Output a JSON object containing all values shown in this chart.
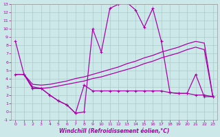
{
  "xlabel": "Windchill (Refroidissement éolien,°C)",
  "bg_color": "#cce8e8",
  "grid_color": "#aacccc",
  "line_color": "#aa00aa",
  "main_x": [
    0,
    1,
    2,
    3,
    4,
    5,
    6,
    7,
    8,
    9,
    10,
    11,
    12,
    13,
    14,
    15,
    16,
    17,
    18,
    19,
    20,
    21,
    22,
    23
  ],
  "main_y": [
    8.5,
    4.5,
    2.8,
    2.8,
    2.0,
    1.3,
    0.8,
    -0.2,
    -0.05,
    10.0,
    7.2,
    12.5,
    13.0,
    13.2,
    12.3,
    10.2,
    12.5,
    8.5,
    2.3,
    2.2,
    2.2,
    4.5,
    1.8,
    1.8
  ],
  "diag_upper_x": [
    0,
    1,
    2,
    3,
    4,
    5,
    6,
    7,
    8,
    9,
    10,
    11,
    12,
    13,
    14,
    15,
    16,
    17,
    18,
    19,
    20,
    21,
    22,
    23
  ],
  "diag_upper_y": [
    4.5,
    4.5,
    3.3,
    3.2,
    3.3,
    3.5,
    3.7,
    4.0,
    4.2,
    4.5,
    4.8,
    5.1,
    5.4,
    5.8,
    6.1,
    6.5,
    6.8,
    7.2,
    7.5,
    7.8,
    8.2,
    8.5,
    8.3,
    1.8
  ],
  "diag_lower_x": [
    0,
    1,
    2,
    3,
    4,
    5,
    6,
    7,
    8,
    9,
    10,
    11,
    12,
    13,
    14,
    15,
    16,
    17,
    18,
    19,
    20,
    21,
    22,
    23
  ],
  "diag_lower_y": [
    4.5,
    4.5,
    3.0,
    2.8,
    2.9,
    3.1,
    3.3,
    3.5,
    3.7,
    4.0,
    4.2,
    4.5,
    4.8,
    5.1,
    5.4,
    5.8,
    6.1,
    6.5,
    6.8,
    7.1,
    7.5,
    7.8,
    7.5,
    1.8
  ],
  "flat_x": [
    0,
    1,
    2,
    3,
    4,
    5,
    6,
    7,
    8,
    9,
    10,
    11,
    12,
    13,
    14,
    15,
    16,
    17,
    18,
    19,
    20,
    21,
    22,
    23
  ],
  "flat_y": [
    4.5,
    4.5,
    2.8,
    2.8,
    2.0,
    1.3,
    0.8,
    -0.2,
    3.2,
    2.5,
    2.5,
    2.5,
    2.5,
    2.5,
    2.5,
    2.5,
    2.5,
    2.5,
    2.3,
    2.2,
    2.2,
    2.0,
    2.0,
    1.8
  ],
  "ylim": [
    -1,
    13
  ],
  "xlim": [
    -0.5,
    23.5
  ],
  "yticks": [
    -1,
    0,
    1,
    2,
    3,
    4,
    5,
    6,
    7,
    8,
    9,
    10,
    11,
    12,
    13
  ],
  "xticks": [
    0,
    1,
    2,
    3,
    4,
    5,
    6,
    7,
    8,
    9,
    10,
    11,
    12,
    13,
    14,
    15,
    16,
    17,
    18,
    19,
    20,
    21,
    22,
    23
  ]
}
